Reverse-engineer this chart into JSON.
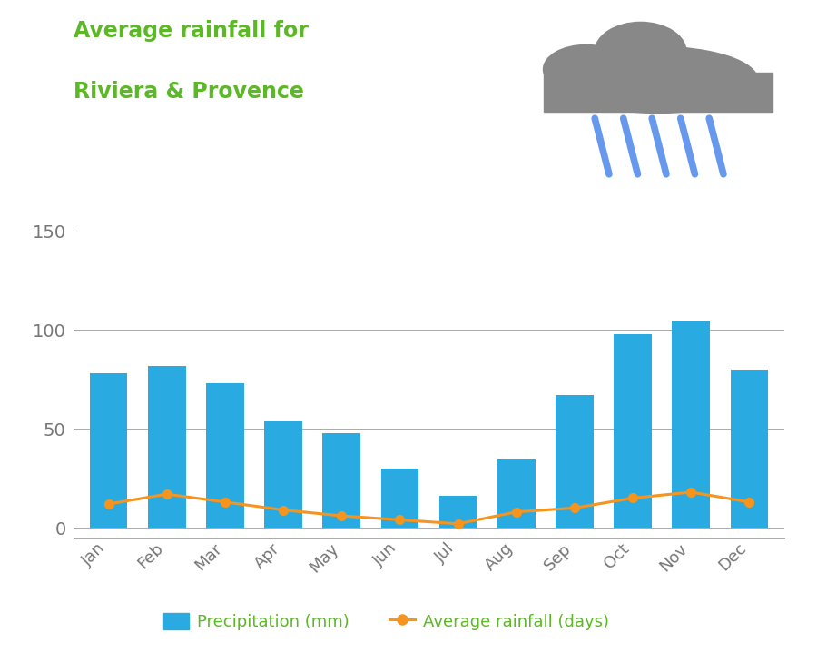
{
  "months": [
    "Jan",
    "Feb",
    "Mar",
    "Apr",
    "May",
    "Jun",
    "Jul",
    "Aug",
    "Sep",
    "Oct",
    "Nov",
    "Dec"
  ],
  "precipitation_mm": [
    78,
    82,
    73,
    54,
    48,
    30,
    16,
    35,
    67,
    98,
    105,
    80
  ],
  "rainfall_days": [
    12,
    17,
    13,
    9,
    6,
    4,
    2,
    8,
    10,
    15,
    18,
    13
  ],
  "bar_color": "#29abe2",
  "line_color": "#f7941d",
  "title_line1": "Average rainfall for",
  "title_line2": "Riviera & Provence",
  "title_color": "#5cb827",
  "legend_label_bar": "Precipitation (mm)",
  "legend_label_line": "Average rainfall (days)",
  "legend_color": "#5cb827",
  "yticks": [
    0,
    50,
    100,
    150
  ],
  "ylim": [
    -5,
    165
  ],
  "grid_color": "#aaaaaa",
  "cloud_color": "#888888",
  "rain_color": "#6699ee",
  "tick_color": "#777777"
}
